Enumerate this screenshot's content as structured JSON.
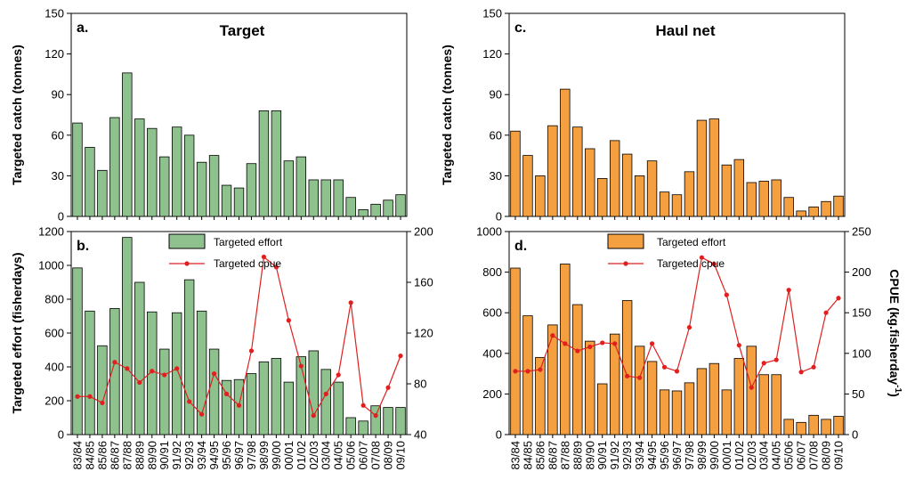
{
  "colors": {
    "target_bar": "#8fc18f",
    "haul_bar": "#f5a040",
    "cpue_line": "#e02020",
    "axis": "#000000"
  },
  "left": {
    "letter_top": "a.",
    "title": "Target",
    "ylabel_top": "Targeted catch (tonnes)",
    "letter_bottom": "b.",
    "ylabel_bottom": "Targeted effort (fisherdays)"
  },
  "right": {
    "letter_top": "c.",
    "title": "Haul net",
    "ylabel_top": "Targeted catch (tonnes)",
    "letter_bottom": "d.",
    "ylabel_right": "CPUE (kg.fisherday",
    "ylabel_right_sup": "-1",
    "ylabel_right_close": ")"
  },
  "legend": {
    "effort": "Targeted effort",
    "cpue": "Targeted cpue"
  },
  "chart_data": [
    {
      "id": "a",
      "type": "bar",
      "title": "Target",
      "ylabel": "Targeted catch (tonnes)",
      "ylim": [
        0,
        150
      ],
      "yticks": [
        0,
        30,
        60,
        90,
        120,
        150
      ],
      "categories": [
        "83/84",
        "84/85",
        "85/86",
        "86/87",
        "87/88",
        "88/89",
        "89/90",
        "90/91",
        "91/92",
        "92/93",
        "93/94",
        "94/95",
        "95/96",
        "96/97",
        "97/98",
        "98/99",
        "99/00",
        "00/01",
        "01/02",
        "02/03",
        "03/04",
        "04/05",
        "05/06",
        "06/07",
        "07/08",
        "08/09",
        "09/10"
      ],
      "values": [
        69,
        51,
        34,
        73,
        106,
        72,
        65,
        44,
        66,
        60,
        40,
        45,
        23,
        21,
        39,
        78,
        78,
        41,
        44,
        27,
        27,
        27,
        14,
        5,
        9,
        12,
        16
      ]
    },
    {
      "id": "b",
      "type": "bar",
      "ylabel": "Targeted effort (fisherdays)",
      "ylim": [
        0,
        1200
      ],
      "yticks": [
        0,
        200,
        400,
        600,
        800,
        1000,
        1200
      ],
      "y2lim": [
        40,
        200
      ],
      "y2ticks": [
        40,
        80,
        120,
        160,
        200
      ],
      "categories": [
        "83/84",
        "84/85",
        "85/86",
        "86/87",
        "87/88",
        "88/89",
        "89/90",
        "90/91",
        "91/92",
        "92/93",
        "93/94",
        "94/95",
        "95/96",
        "96/97",
        "97/98",
        "98/99",
        "99/00",
        "00/01",
        "01/02",
        "02/03",
        "03/04",
        "04/05",
        "05/06",
        "06/07",
        "07/08",
        "08/09",
        "09/10"
      ],
      "series": [
        {
          "name": "Targeted effort",
          "type": "bar",
          "values": [
            985,
            730,
            525,
            745,
            1165,
            900,
            725,
            505,
            720,
            915,
            730,
            505,
            320,
            325,
            360,
            430,
            450,
            310,
            460,
            495,
            385,
            310,
            100,
            80,
            170,
            160,
            160
          ]
        },
        {
          "name": "Targeted cpue",
          "type": "line",
          "axis": "right",
          "values": [
            70,
            70,
            65,
            97,
            92,
            81,
            90,
            87,
            92,
            66,
            56,
            88,
            72,
            63,
            106,
            180,
            172,
            130,
            94,
            55,
            72,
            87,
            144,
            63,
            55,
            77,
            102
          ]
        }
      ]
    },
    {
      "id": "c",
      "type": "bar",
      "title": "Haul net",
      "ylabel": "Targeted catch (tonnes)",
      "ylim": [
        0,
        150
      ],
      "yticks": [
        0,
        30,
        60,
        90,
        120,
        150
      ],
      "categories": [
        "83/84",
        "84/85",
        "85/86",
        "86/87",
        "87/88",
        "88/89",
        "89/90",
        "90/91",
        "91/92",
        "92/93",
        "93/94",
        "94/95",
        "95/96",
        "96/97",
        "97/98",
        "98/99",
        "99/00",
        "00/01",
        "01/02",
        "02/03",
        "03/04",
        "04/05",
        "05/06",
        "06/07",
        "07/08",
        "08/09",
        "09/10"
      ],
      "values": [
        63,
        45,
        30,
        67,
        94,
        66,
        50,
        28,
        56,
        46,
        30,
        41,
        18,
        16,
        33,
        71,
        72,
        38,
        42,
        25,
        26,
        27,
        14,
        4,
        7,
        11,
        15
      ]
    },
    {
      "id": "d",
      "type": "bar",
      "ylabel": "",
      "y2label": "CPUE (kg.fisherday-1)",
      "ylim": [
        0,
        1000
      ],
      "yticks": [
        0,
        200,
        400,
        600,
        800,
        1000
      ],
      "y2lim": [
        0,
        250
      ],
      "y2ticks": [
        0,
        50,
        100,
        150,
        200,
        250
      ],
      "categories": [
        "83/84",
        "84/85",
        "85/86",
        "86/87",
        "87/88",
        "88/89",
        "89/90",
        "90/91",
        "91/92",
        "92/93",
        "93/94",
        "94/95",
        "95/96",
        "96/97",
        "97/98",
        "98/99",
        "99/00",
        "00/01",
        "01/02",
        "02/03",
        "03/04",
        "04/05",
        "05/06",
        "06/07",
        "07/08",
        "08/09",
        "09/10"
      ],
      "series": [
        {
          "name": "Targeted effort",
          "type": "bar",
          "values": [
            820,
            585,
            380,
            540,
            840,
            640,
            460,
            250,
            495,
            660,
            435,
            360,
            220,
            215,
            255,
            325,
            350,
            220,
            375,
            435,
            295,
            295,
            75,
            60,
            95,
            75,
            90
          ]
        },
        {
          "name": "Targeted cpue",
          "type": "line",
          "axis": "right",
          "values": [
            78,
            78,
            80,
            122,
            112,
            103,
            108,
            113,
            112,
            72,
            70,
            112,
            83,
            78,
            132,
            218,
            210,
            172,
            110,
            58,
            88,
            92,
            178,
            77,
            83,
            150,
            168
          ]
        }
      ]
    }
  ]
}
